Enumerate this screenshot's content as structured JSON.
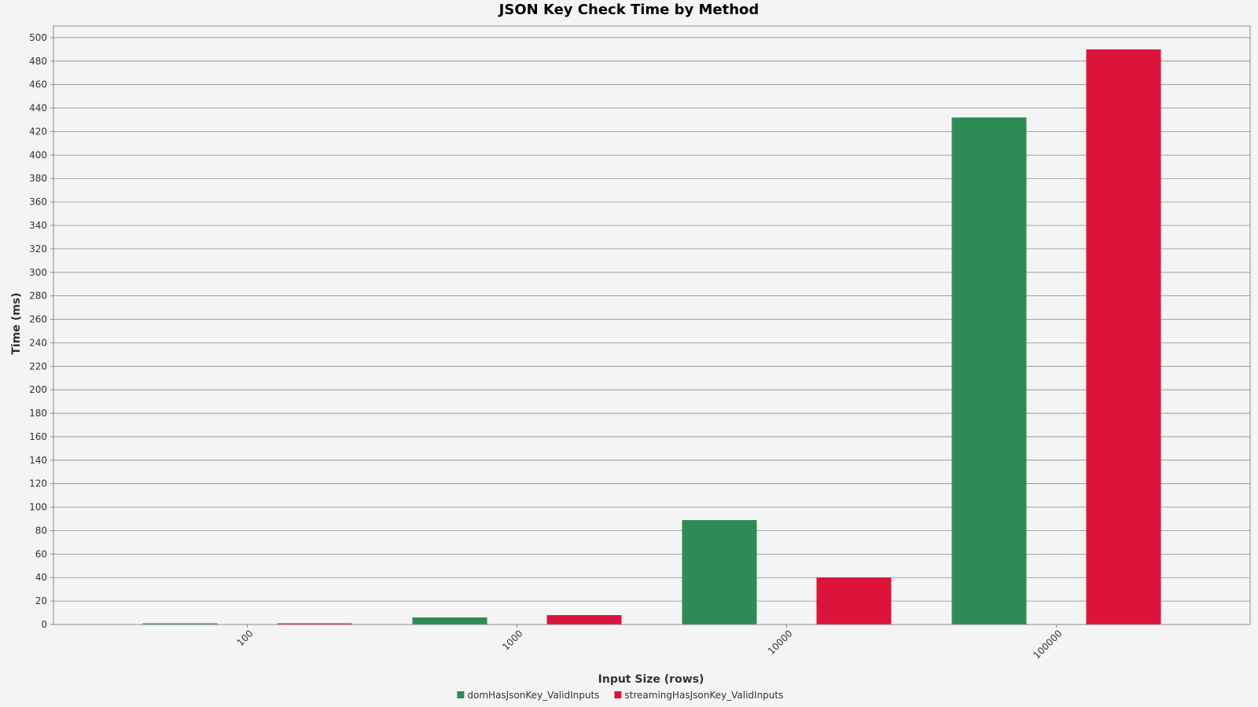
{
  "chart_data": {
    "type": "bar",
    "title": "JSON Key Check Time by Method",
    "xlabel": "Input Size (rows)",
    "ylabel": "Time (ms)",
    "categories": [
      "100",
      "1000",
      "10000",
      "100000"
    ],
    "series": [
      {
        "name": "domHasJsonKey_ValidInputs",
        "values": [
          1,
          6,
          89,
          432
        ],
        "color": "#2e8b57"
      },
      {
        "name": "streamingHasJsonKey_ValidInputs",
        "values": [
          1,
          8,
          40,
          490
        ],
        "color": "#dc143c"
      }
    ],
    "ylim": [
      0,
      510
    ],
    "yticks": [
      0,
      20,
      40,
      60,
      80,
      100,
      120,
      140,
      160,
      180,
      200,
      220,
      240,
      260,
      280,
      300,
      320,
      340,
      360,
      380,
      400,
      420,
      440,
      460,
      480,
      500
    ],
    "grid": true,
    "legend": "bottom"
  }
}
